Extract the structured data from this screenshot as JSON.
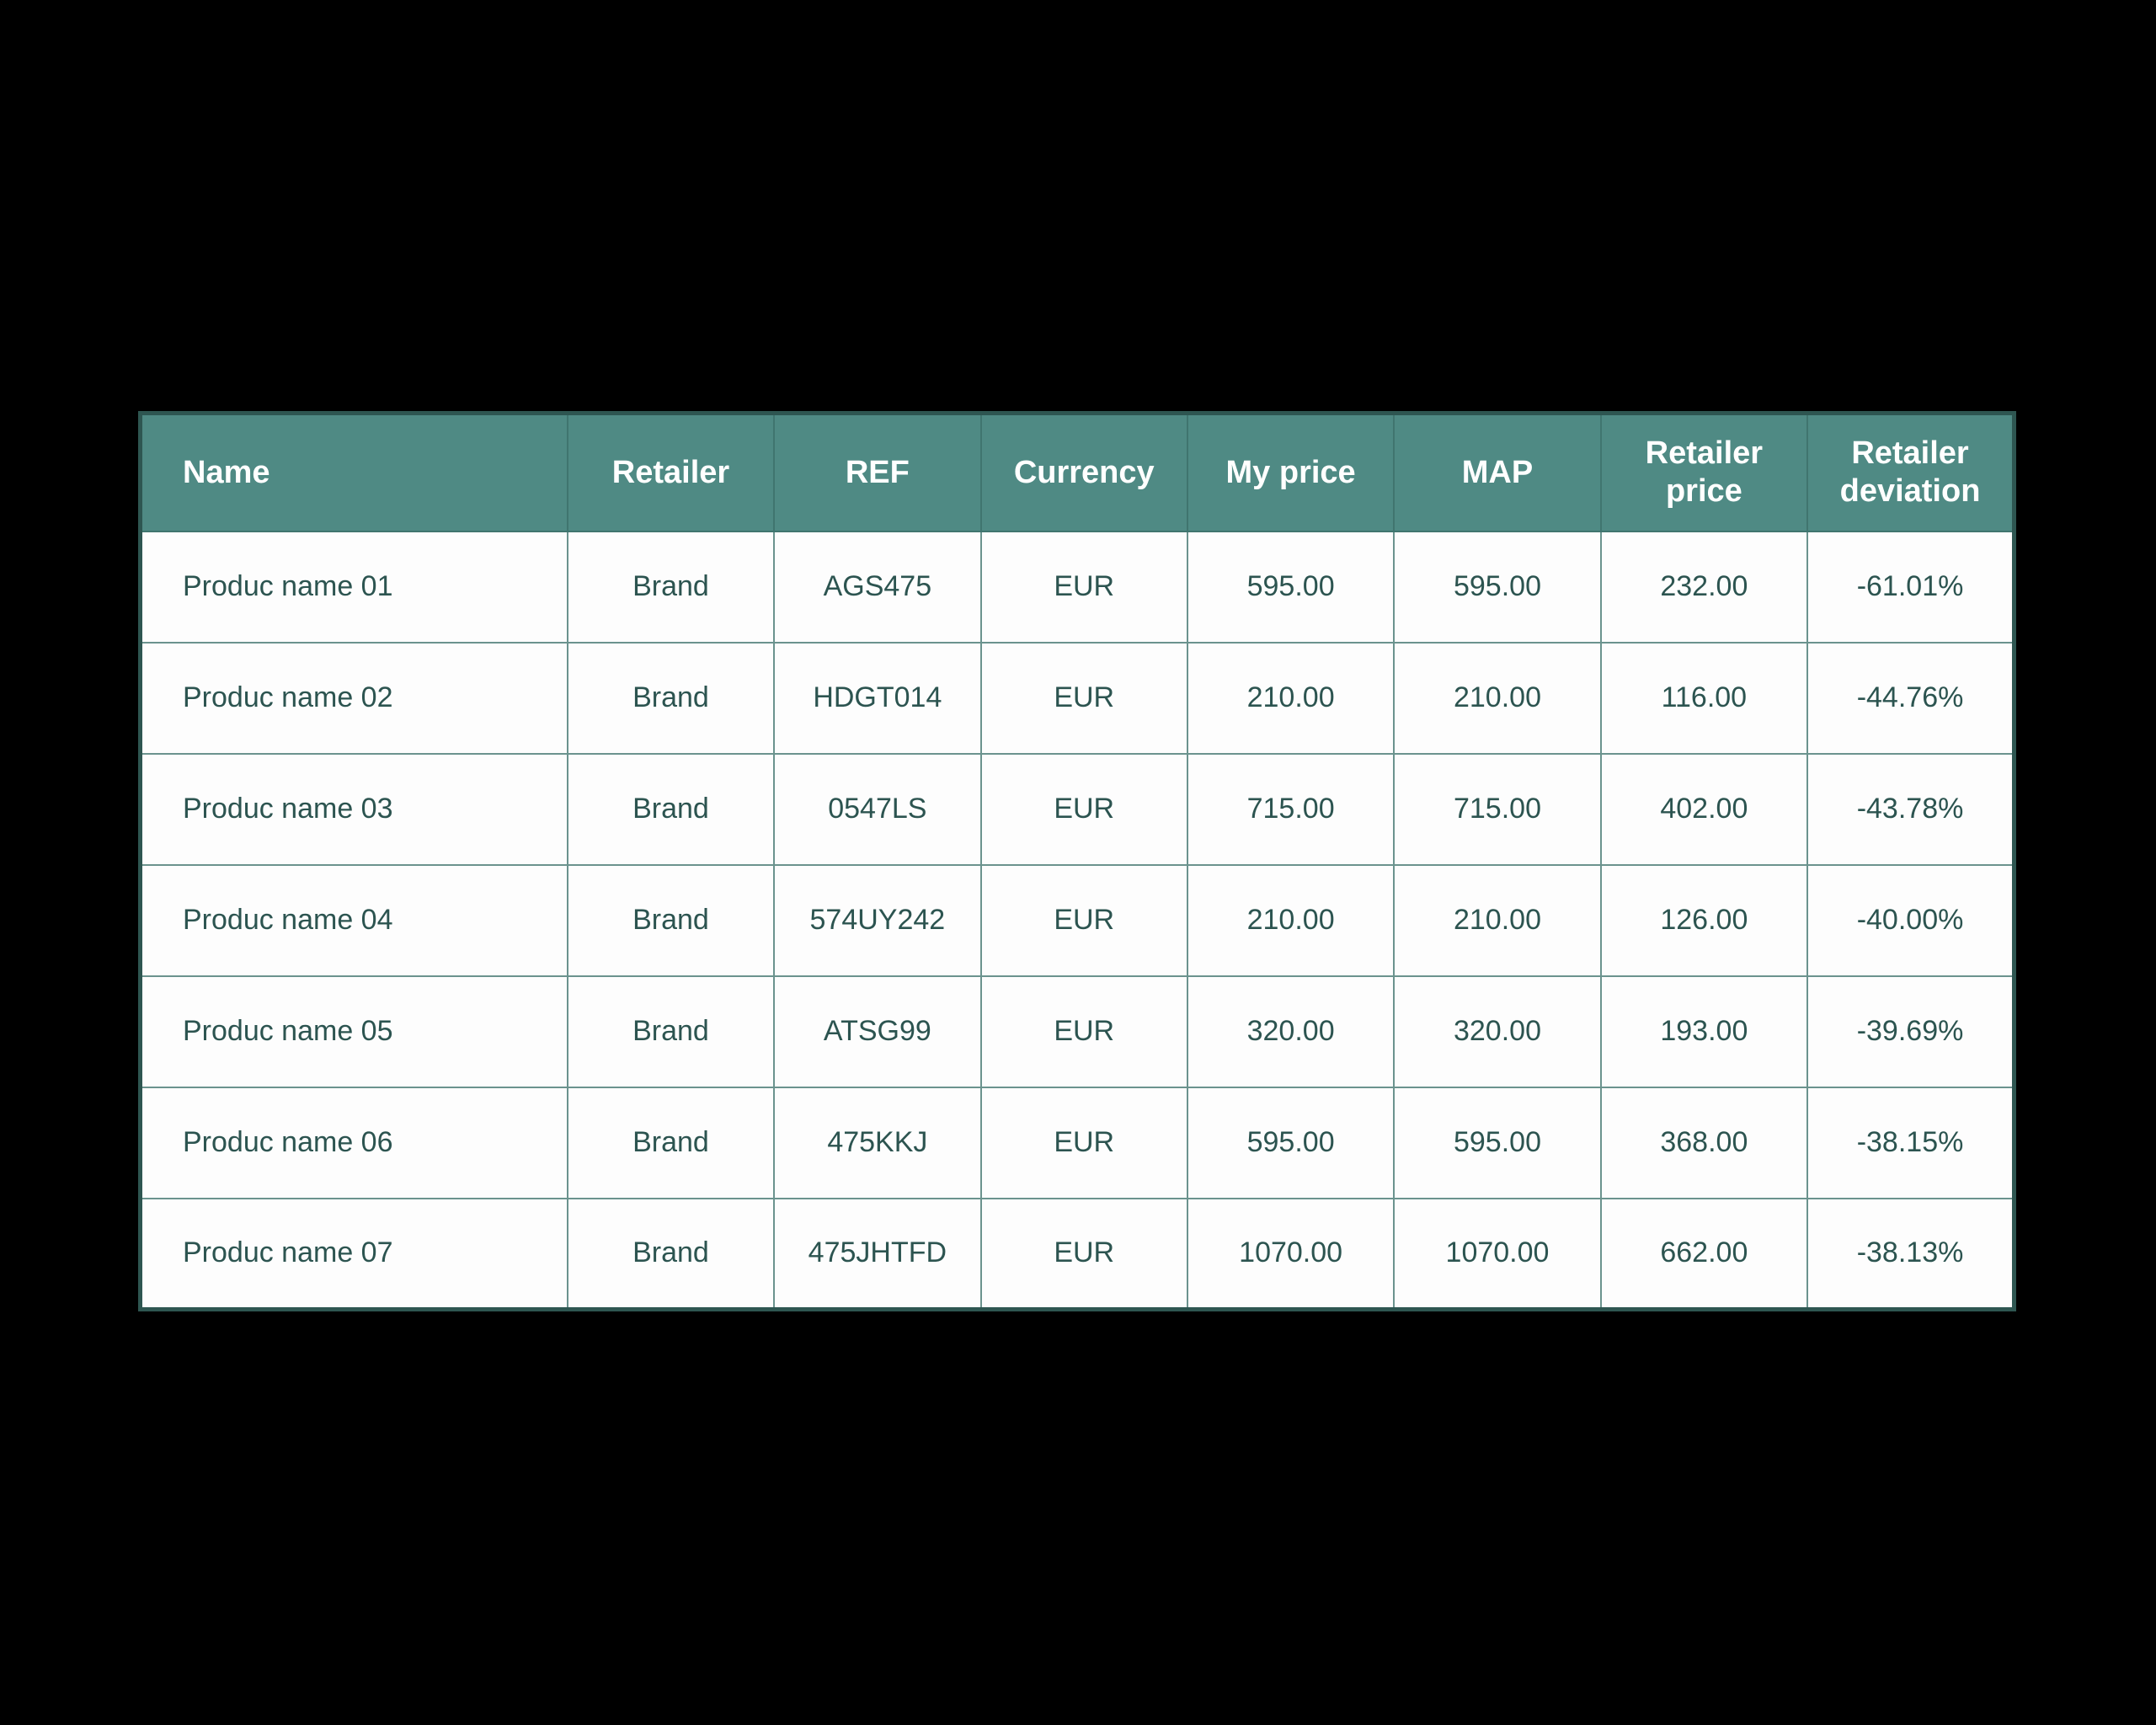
{
  "page": {
    "background": "#000000"
  },
  "chart_data": {
    "type": "table",
    "title": "",
    "columns": [
      "Name",
      "Retailer",
      "REF",
      "Currency",
      "My price",
      "MAP",
      "Retailer price",
      "Retailer deviation"
    ],
    "rows": [
      [
        "Produc name 01",
        "Brand",
        "AGS475",
        "EUR",
        "595.00",
        "595.00",
        "232.00",
        "-61.01%"
      ],
      [
        "Produc name 02",
        "Brand",
        "HDGT014",
        "EUR",
        "210.00",
        "210.00",
        "116.00",
        "-44.76%"
      ],
      [
        "Produc name 03",
        "Brand",
        "0547LS",
        "EUR",
        "715.00",
        "715.00",
        "402.00",
        "-43.78%"
      ],
      [
        "Produc name 04",
        "Brand",
        "574UY242",
        "EUR",
        "210.00",
        "210.00",
        "126.00",
        "-40.00%"
      ],
      [
        "Produc name 05",
        "Brand",
        "ATSG99",
        "EUR",
        "320.00",
        "320.00",
        "193.00",
        "-39.69%"
      ],
      [
        "Produc name 06",
        "Brand",
        "475KKJ",
        "EUR",
        "595.00",
        "595.00",
        "368.00",
        "-38.15%"
      ],
      [
        "Produc name 07",
        "Brand",
        "475JHTFD",
        "EUR",
        "1070.00",
        "1070.00",
        "662.00",
        "-38.13%"
      ]
    ],
    "layout": {
      "header_position": "top",
      "first_column_align": "left",
      "other_columns_align": "center",
      "grid": "on"
    }
  },
  "colors": {
    "page_bg": "#000000",
    "header_bg": "#4f8a84",
    "header_text": "#ffffff",
    "header_divider": "#40756f",
    "cell_bg": "#fdfdfd",
    "cell_text": "#2c5450",
    "inner_border": "#6b938e",
    "outer_border": "#2e5651"
  }
}
